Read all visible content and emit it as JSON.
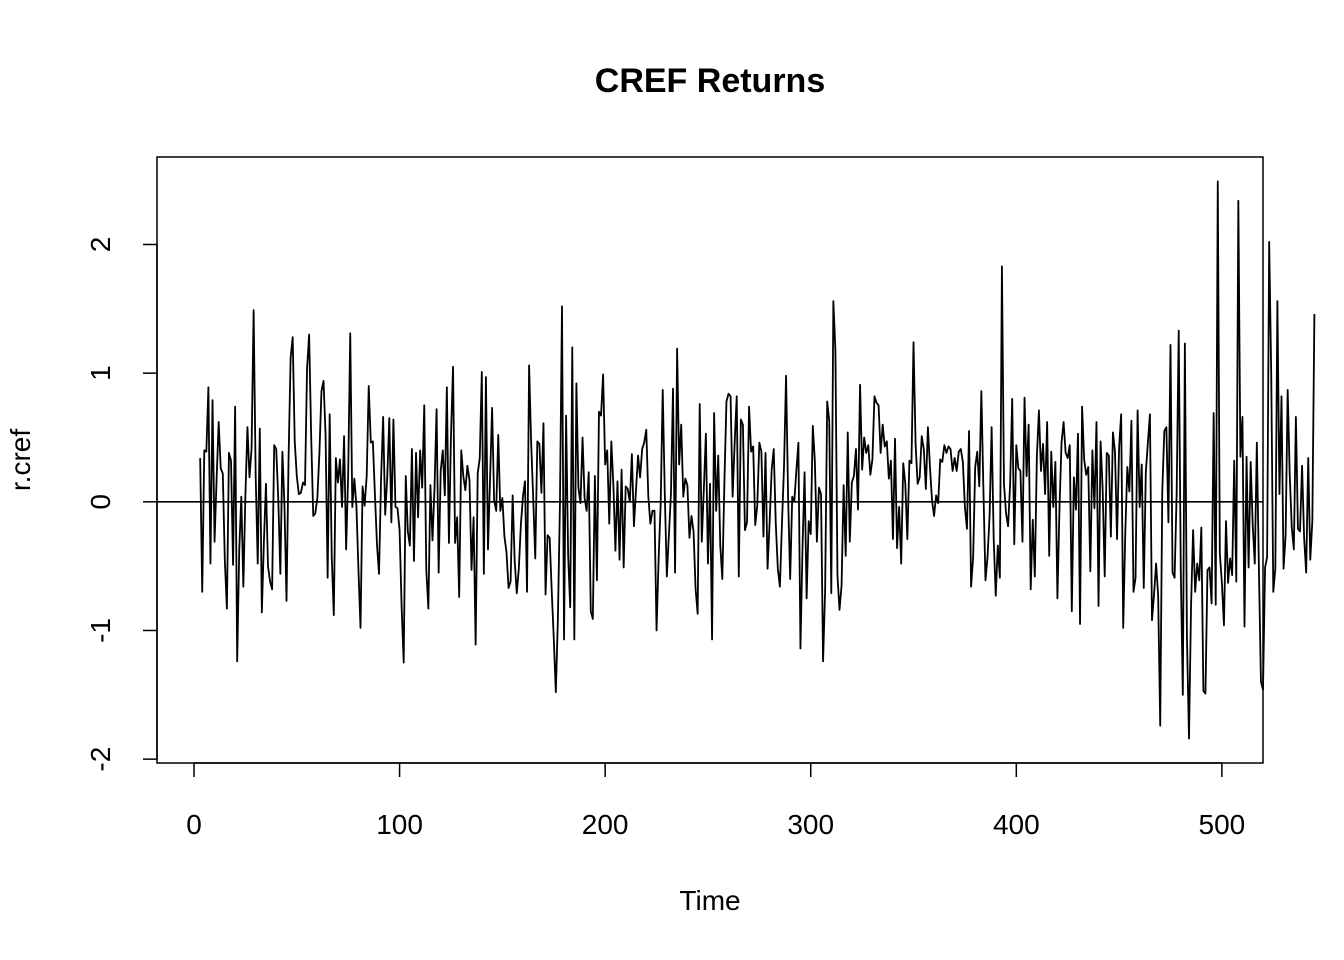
{
  "chart_data": {
    "type": "line",
    "title": "CREF Returns",
    "xlabel": "Time",
    "ylabel": "r.cref",
    "xlim": [
      -18,
      520
    ],
    "ylim": [
      -2.03,
      2.68
    ],
    "x_ticks": [
      0,
      100,
      200,
      300,
      400,
      500
    ],
    "y_ticks": [
      -2,
      -1,
      0,
      1,
      2
    ],
    "reference_line_y": 0,
    "line_color": "#000000",
    "grid": false,
    "legend": "none",
    "x_start": 3,
    "series": [
      {
        "values": [
          0.34,
          -0.7,
          0.4,
          0.39,
          0.89,
          -0.48,
          0.79,
          -0.31,
          0.18,
          0.62,
          0.26,
          0.22,
          -0.46,
          -0.83,
          0.38,
          0.32,
          -0.49,
          0.74,
          -1.24,
          -0.38,
          0.04,
          -0.66,
          0.05,
          0.58,
          0.19,
          0.41,
          1.49,
          0.2,
          -0.48,
          0.57,
          -0.86,
          -0.31,
          0.14,
          -0.5,
          -0.62,
          -0.68,
          0.44,
          0.41,
          0.02,
          -0.56,
          0.39,
          -0.03,
          -0.77,
          0.34,
          1.12,
          1.28,
          0.47,
          0.2,
          0.06,
          0.07,
          0.15,
          0.13,
          1.04,
          1.3,
          0.51,
          -0.11,
          -0.09,
          0.03,
          0.38,
          0.86,
          0.94,
          0.52,
          -0.59,
          0.68,
          -0.43,
          -0.88,
          0.34,
          0.15,
          0.33,
          -0.04,
          0.51,
          -0.37,
          0.22,
          1.31,
          -0.04,
          0.18,
          -0.03,
          -0.53,
          -0.98,
          0.12,
          -0.03,
          0.2,
          0.9,
          0.46,
          0.47,
          0.06,
          -0.33,
          -0.56,
          0.18,
          0.66,
          -0.1,
          0.19,
          0.65,
          -0.16,
          0.64,
          -0.04,
          -0.05,
          -0.22,
          -0.82,
          -1.25,
          0.2,
          -0.23,
          -0.34,
          0.41,
          -0.46,
          0.38,
          -0.12,
          0.4,
          0.11,
          0.75,
          -0.53,
          -0.83,
          0.13,
          -0.3,
          0.11,
          0.72,
          -0.55,
          0.24,
          0.4,
          0.05,
          0.89,
          -0.32,
          0.51,
          1.05,
          -0.32,
          -0.12,
          -0.74,
          0.4,
          0.2,
          0.09,
          0.28,
          0.17,
          -0.53,
          -0.12,
          -1.11,
          0.22,
          0.34,
          1.01,
          -0.56,
          0.97,
          -0.37,
          0.17,
          0.73,
          0.01,
          -0.07,
          0.52,
          -0.07,
          0.03,
          -0.27,
          -0.39,
          -0.67,
          -0.62,
          0.05,
          -0.46,
          -0.71,
          -0.52,
          -0.18,
          0.04,
          0.16,
          -0.7,
          1.06,
          0.46,
          0.03,
          -0.44,
          0.47,
          0.45,
          0.07,
          0.61,
          -0.72,
          -0.26,
          -0.28,
          -0.69,
          -1.06,
          -1.48,
          -0.92,
          -0.02,
          1.52,
          -1.07,
          0.67,
          -0.42,
          -0.82,
          1.2,
          -1.07,
          0.92,
          0.11,
          -0.01,
          0.5,
          0.03,
          -0.07,
          0.23,
          -0.85,
          -0.91,
          0.2,
          -0.61,
          0.7,
          0.67,
          0.99,
          0.29,
          0.4,
          -0.17,
          0.47,
          0.13,
          -0.38,
          0.16,
          -0.45,
          0.25,
          -0.51,
          0.12,
          0.1,
          0.0,
          0.37,
          -0.19,
          0.09,
          0.36,
          0.19,
          0.41,
          0.46,
          0.56,
          0.04,
          -0.17,
          -0.07,
          -0.07,
          -1.0,
          -0.45,
          -0.02,
          0.87,
          0.07,
          -0.58,
          -0.26,
          0.06,
          0.88,
          -0.55,
          1.19,
          0.29,
          0.6,
          0.04,
          0.18,
          0.13,
          -0.28,
          -0.11,
          -0.23,
          -0.68,
          -0.87,
          0.76,
          -0.31,
          0.1,
          0.53,
          -0.48,
          0.14,
          -1.07,
          0.69,
          -0.07,
          0.36,
          -0.34,
          -0.6,
          0.15,
          0.78,
          0.84,
          0.82,
          0.04,
          0.46,
          0.82,
          -0.58,
          0.64,
          0.6,
          -0.22,
          -0.16,
          0.74,
          0.39,
          0.43,
          -0.18,
          -0.03,
          0.46,
          0.39,
          -0.27,
          0.38,
          -0.52,
          -0.16,
          0.25,
          0.41,
          -0.17,
          -0.52,
          -0.66,
          -0.17,
          0.27,
          0.98,
          0.03,
          -0.6,
          0.04,
          0.0,
          0.24,
          0.46,
          -1.14,
          -0.36,
          0.23,
          -0.75,
          -0.15,
          -0.25,
          0.59,
          0.32,
          -0.31,
          0.11,
          0.06,
          -1.24,
          -0.69,
          0.78,
          0.63,
          -0.71,
          1.56,
          1.18,
          -0.57,
          -0.84,
          -0.65,
          0.13,
          -0.42,
          0.54,
          -0.31,
          0.15,
          0.2,
          0.41,
          -0.06,
          0.91,
          0.25,
          0.5,
          0.38,
          0.44,
          0.21,
          0.33,
          0.82,
          0.77,
          0.75,
          0.38,
          0.6,
          0.43,
          0.47,
          0.18,
          0.32,
          -0.29,
          0.49,
          -0.36,
          -0.04,
          -0.48,
          0.3,
          0.14,
          -0.29,
          0.32,
          0.3,
          1.24,
          0.45,
          0.14,
          0.19,
          0.51,
          0.41,
          0.1,
          0.58,
          0.27,
          0.01,
          -0.11,
          0.05,
          -0.01,
          0.33,
          0.31,
          0.44,
          0.38,
          0.43,
          0.41,
          0.24,
          0.34,
          0.24,
          0.39,
          0.41,
          0.31,
          -0.04,
          -0.21,
          0.55,
          -0.66,
          -0.43,
          0.27,
          0.39,
          0.12,
          0.86,
          0.09,
          -0.61,
          -0.43,
          -0.11,
          0.58,
          -0.29,
          -0.73,
          -0.34,
          -0.59,
          1.83,
          0.14,
          -0.09,
          -0.19,
          0.14,
          0.8,
          -0.33,
          0.44,
          0.26,
          0.24,
          -0.31,
          0.81,
          0.2,
          0.6,
          -0.68,
          -0.14,
          -0.58,
          0.35,
          0.71,
          0.24,
          0.45,
          0.06,
          0.62,
          -0.42,
          0.39,
          -0.04,
          0.31,
          -0.75,
          -0.05,
          0.46,
          0.62,
          0.38,
          0.34,
          0.44,
          -0.85,
          0.19,
          -0.06,
          0.53,
          -0.95,
          0.74,
          0.33,
          0.21,
          0.27,
          -0.54,
          0.4,
          -0.05,
          0.62,
          -0.81,
          0.47,
          0.1,
          -0.58,
          0.38,
          0.36,
          -0.27,
          0.54,
          0.39,
          -0.29,
          0.42,
          0.68,
          -0.98,
          -0.25,
          0.27,
          0.08,
          0.63,
          -0.7,
          -0.59,
          0.71,
          -0.04,
          0.29,
          -0.67,
          0.23,
          0.46,
          0.68,
          -0.92,
          -0.72,
          -0.48,
          -0.73,
          -1.74,
          0.08,
          0.55,
          0.58,
          -0.16,
          1.22,
          -0.55,
          -0.59,
          0.07,
          1.33,
          -0.53,
          -1.5,
          1.23,
          -1.05,
          -1.84,
          -0.81,
          -0.22,
          -0.7,
          -0.48,
          -0.61,
          -0.2,
          -1.47,
          -1.49,
          -0.53,
          -0.51,
          -0.79,
          0.69,
          -0.8,
          2.49,
          -0.4,
          -0.63,
          -0.96,
          -0.15,
          -0.63,
          -0.44,
          -0.57,
          0.32,
          -0.62,
          2.34,
          0.35,
          0.66,
          -0.97,
          0.35,
          -0.51,
          0.31,
          -0.18,
          -0.48,
          0.46,
          -0.51,
          -1.4,
          -1.46,
          -0.51,
          -0.43,
          2.02,
          1.0,
          -0.7,
          -0.52,
          1.56,
          0.06,
          0.82,
          -0.52,
          -0.26,
          0.87,
          0.21,
          -0.2,
          -0.37,
          0.66,
          -0.21,
          -0.23,
          0.28,
          -0.28,
          -0.55,
          0.34,
          -0.45,
          -0.15,
          1.46
        ]
      }
    ]
  }
}
